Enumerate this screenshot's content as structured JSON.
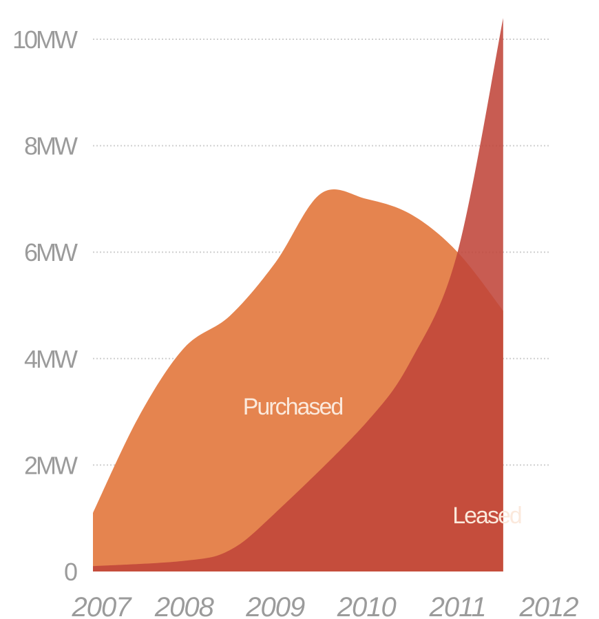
{
  "chart_data": {
    "type": "area",
    "title": "",
    "xlabel": "",
    "ylabel": "",
    "x": [
      "2007",
      "2008",
      "2009",
      "2010",
      "2011",
      "2012"
    ],
    "ylim": [
      0,
      10
    ],
    "y_ticks": [
      0,
      2,
      4,
      6,
      8,
      10
    ],
    "y_tick_labels": [
      "0",
      "2MW",
      "4MW",
      "6MW",
      "8MW",
      "10MW"
    ],
    "grid": true,
    "series": [
      {
        "name": "Purchased",
        "color": "#e5844f",
        "points": [
          [
            0,
            1.1
          ],
          [
            0.5,
            2.9
          ],
          [
            1.0,
            4.2
          ],
          [
            1.5,
            4.8
          ],
          [
            2.0,
            5.8
          ],
          [
            2.5,
            7.1
          ],
          [
            3.0,
            7.0
          ],
          [
            3.5,
            6.7
          ],
          [
            4.0,
            6.0
          ],
          [
            4.5,
            4.9
          ]
        ]
      },
      {
        "name": "Leased",
        "color": "#c0453a",
        "points": [
          [
            0,
            0.1
          ],
          [
            1.0,
            0.2
          ],
          [
            1.5,
            0.4
          ],
          [
            2.0,
            1.1
          ],
          [
            3.0,
            2.8
          ],
          [
            3.5,
            4.0
          ],
          [
            4.0,
            6.0
          ],
          [
            4.5,
            10.4
          ]
        ]
      }
    ]
  }
}
